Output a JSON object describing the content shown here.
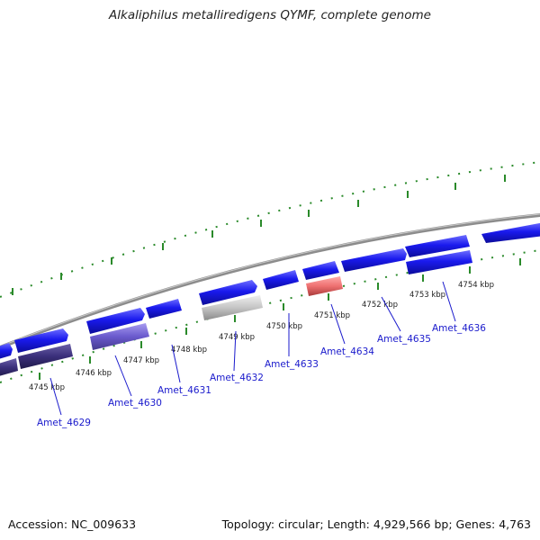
{
  "title": "Alkaliphilus metalliredigens QYMF, complete genome",
  "footer": {
    "accession": "Accession: NC_009633",
    "summary": "Topology: circular; Length: 4,929,566 bp; Genes: 4,763"
  },
  "kbp_ticks": [
    "4745 kbp",
    "4746 kbp",
    "4747 kbp",
    "4748 kbp",
    "4749 kbp",
    "4750 kbp",
    "4751 kbp",
    "4752 kbp",
    "4753 kbp",
    "4754 kbp"
  ],
  "genes": [
    "Amet_4629",
    "Amet_4630",
    "Amet_4631",
    "Amet_4632",
    "Amet_4633",
    "Amet_4634",
    "Amet_4635",
    "Amet_4636"
  ],
  "colors": {
    "backbone": "#8c8c8c",
    "gene_forward": "#1a1aee",
    "gene_highlight_purple": "#6a5acd",
    "gene_dark_purple": "#3a2f7a",
    "gene_grey": "#bdbdbd",
    "gene_red": "#ee7070",
    "tick_green": "#2a8a2a",
    "label_blue": "#1a1acc"
  }
}
